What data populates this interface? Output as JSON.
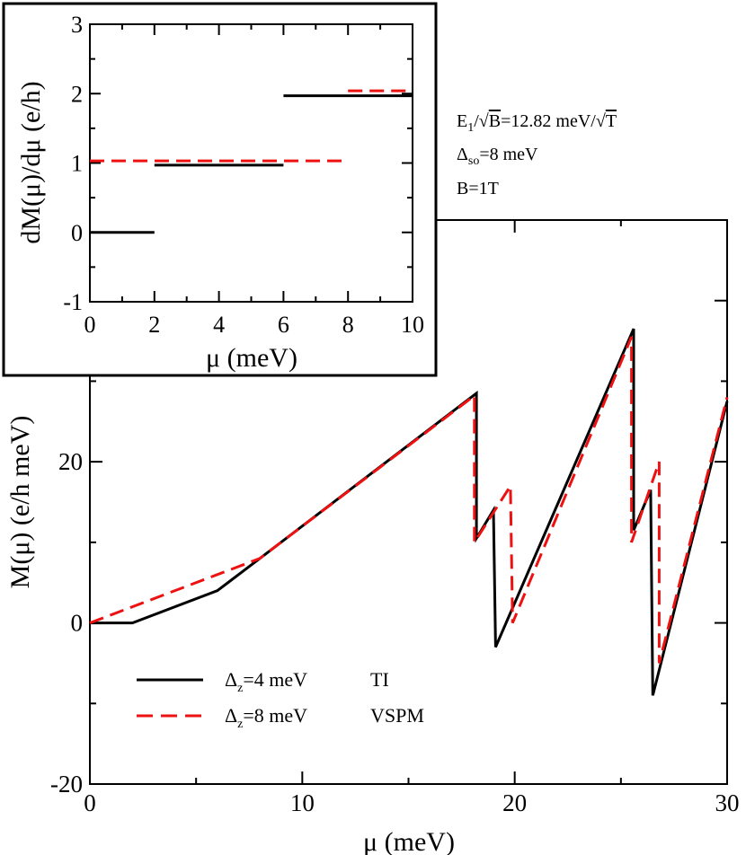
{
  "chart_data": [
    {
      "type": "line",
      "name": "main",
      "xlabel": "μ (meV)",
      "ylabel": "M(μ) (e/h meV)",
      "xlim": [
        0,
        30
      ],
      "ylim": [
        -20,
        50
      ],
      "xticks": [
        0,
        10,
        20,
        30
      ],
      "yticks": [
        -20,
        0,
        20
      ],
      "legend_position": "bottom-left",
      "series": [
        {
          "name": "Δz=4 meV   TI",
          "color": "#000000",
          "dash": "solid",
          "points": [
            [
              0,
              0
            ],
            [
              2,
              0
            ],
            [
              6,
              4
            ],
            [
              8,
              8
            ],
            [
              18.2,
              28.5
            ],
            [
              18.2,
              10.5
            ],
            [
              19,
              14
            ],
            [
              19.1,
              -3
            ],
            [
              25.6,
              36.5
            ],
            [
              25.6,
              11.5
            ],
            [
              26.4,
              16.5
            ],
            [
              26.5,
              -9
            ],
            [
              30,
              27.5
            ]
          ]
        },
        {
          "name": "Δz=8 meV   VSPM",
          "color": "#ee1111",
          "dash": "dashed",
          "points": [
            [
              0,
              0
            ],
            [
              8,
              8
            ],
            [
              18.1,
              28.2
            ],
            [
              18.1,
              10
            ],
            [
              19.8,
              17
            ],
            [
              19.9,
              0
            ],
            [
              25.5,
              35.5
            ],
            [
              25.5,
              10
            ],
            [
              26.8,
              20
            ],
            [
              26.8,
              -5
            ],
            [
              30,
              28
            ]
          ]
        }
      ],
      "annotations": []
    },
    {
      "type": "line",
      "name": "inset",
      "xlabel": "μ (meV)",
      "ylabel": "dM(μ)/dμ (e/h)",
      "xlim": [
        0,
        10
      ],
      "ylim": [
        -1,
        3
      ],
      "xticks": [
        0,
        2,
        4,
        6,
        8,
        10
      ],
      "yticks": [
        -1,
        0,
        1,
        2,
        3
      ],
      "series": [
        {
          "name": "Δz=4 meV   TI",
          "color": "#000000",
          "dash": "solid",
          "segments": [
            [
              [
                0,
                0
              ],
              [
                2,
                0
              ]
            ],
            [
              [
                2,
                0.97
              ],
              [
                6,
                0.97
              ]
            ],
            [
              [
                6,
                1.97
              ],
              [
                10,
                1.97
              ]
            ]
          ]
        },
        {
          "name": "Δz=8 meV   VSPM",
          "color": "#ee1111",
          "dash": "dashed",
          "segments": [
            [
              [
                0,
                1.03
              ],
              [
                8,
                1.03
              ]
            ],
            [
              [
                8,
                2.04
              ],
              [
                10,
                2.04
              ]
            ]
          ]
        }
      ]
    }
  ],
  "annotation": {
    "line1_prefix": "E",
    "line1_sub": "1",
    "line1_slash": "/√",
    "line1_b": "B",
    "line1_suffix": "=12.82 meV/√",
    "line1_t": "T",
    "line2_prefix": "Δ",
    "line2_sub": "so",
    "line2_suffix": "=8 meV",
    "line3": "B=1T"
  },
  "legend": {
    "items": [
      {
        "delta": "Δ",
        "sub": "z",
        "value": "=4 meV",
        "model": "TI"
      },
      {
        "delta": "Δ",
        "sub": "z",
        "value": "=8 meV",
        "model": "VSPM"
      }
    ]
  },
  "labels": {
    "main_x_prefix": "μ",
    "main_x_suffix": " (meV)",
    "main_y_prefix": "M(",
    "main_y_mu": "μ",
    "main_y_suffix": ") (e/h meV)",
    "inset_x_prefix": "μ",
    "inset_x_suffix": " (meV)",
    "inset_y": "dM(μ)/dμ (e/h)"
  },
  "colors": {
    "black": "#000000",
    "red": "#ee1111"
  }
}
